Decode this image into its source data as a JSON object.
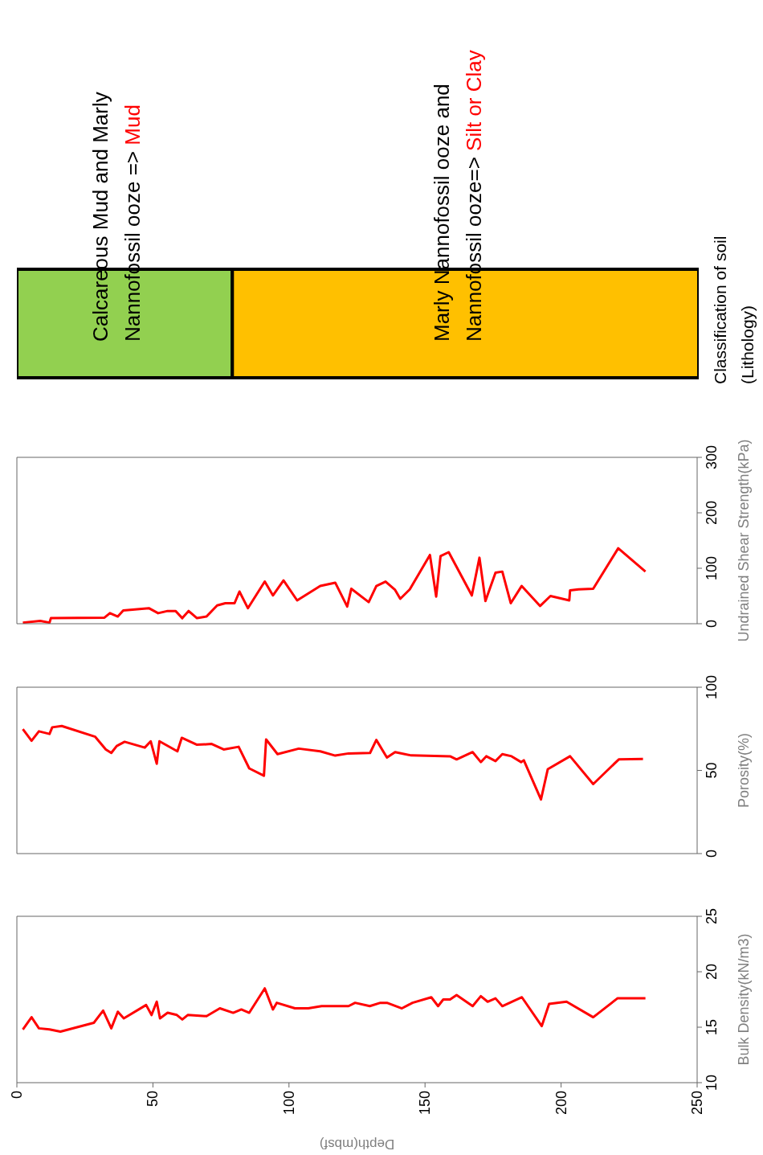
{
  "chart_data": [
    {
      "type": "bar",
      "orientation": "horizontal",
      "stacked": true,
      "categories": [
        null
      ],
      "xlim": [
        0,
        250
      ],
      "tick_labels": false,
      "ylabel": "Classification of soil (Lithology)",
      "annotations": [
        "Mud",
        "Silt or Clay"
      ],
      "series": [
        {
          "name": "Calcareous Mud and Marly Nannofossil ooze =>",
          "color": "#92d050",
          "values": [
            79
          ]
        },
        {
          "name": "Marly Nannofossil ooze and Nannofossil ooze=>",
          "color": "#ffc000",
          "values": [
            171
          ]
        }
      ]
    },
    {
      "type": "line",
      "ylabel": "Undrained Shear Strength(kPa)",
      "xlim": [
        0,
        250
      ],
      "ylim": [
        0,
        300
      ],
      "yticks": [
        0,
        100,
        200,
        300
      ],
      "tick_labels": "y",
      "x": [
        2.2,
        8.6,
        12,
        12.5,
        32.2,
        34.2,
        37.1,
        39.1,
        48.5,
        51.9,
        55.4,
        58.3,
        60.8,
        63.1,
        66.2,
        69.7,
        73.6,
        76.6,
        80,
        81.8,
        84.9,
        91.1,
        94.1,
        98,
        103,
        111.5,
        117,
        121.4,
        122.9,
        129.3,
        132.1,
        135.5,
        139,
        140.9,
        144.4,
        151.8,
        154.1,
        155.7,
        158.7,
        167.2,
        170,
        172.2,
        175.9,
        178.4,
        181.5,
        185.5,
        192.3,
        196.1,
        203,
        203.3,
        206.4,
        211.8,
        221,
        231
      ],
      "series": [
        {
          "color": "#ff0000",
          "values": [
            2,
            5,
            2,
            10,
            11,
            19,
            13,
            24,
            28,
            19,
            23,
            23,
            10,
            23,
            10,
            13,
            33,
            37,
            37,
            58,
            28,
            76,
            51,
            78,
            42,
            68,
            74,
            31,
            63,
            39,
            68,
            76,
            61,
            45,
            62,
            124,
            49,
            122,
            129,
            51,
            119,
            41,
            92,
            94,
            37,
            68,
            32,
            50,
            42,
            60,
            62,
            63,
            136,
            94
          ]
        }
      ]
    },
    {
      "type": "line",
      "ylabel": "Porosity(%)",
      "xlim": [
        0,
        250
      ],
      "ylim": [
        0,
        100
      ],
      "yticks": [
        0,
        50,
        100
      ],
      "tick_labels": "y",
      "x": [
        2.2,
        5.4,
        8.1,
        12,
        13,
        16.5,
        28.8,
        32.7,
        34.7,
        36.7,
        39.6,
        47,
        49.2,
        51.4,
        52.4,
        59,
        60.6,
        66.2,
        71.6,
        76,
        81.5,
        85.4,
        90.8,
        91.6,
        95.8,
        103.6,
        111.5,
        117,
        121.9,
        129.8,
        132.1,
        136,
        139,
        144.9,
        159.2,
        161.6,
        167.5,
        170.5,
        172.5,
        175.9,
        178.4,
        181.8,
        185.3,
        186.3,
        192.6,
        195.1,
        203.3,
        211.8,
        221.2,
        230.1
      ],
      "series": [
        {
          "color": "#ff0000",
          "values": [
            74.8,
            67.8,
            73.5,
            71.9,
            75.9,
            76.7,
            70.2,
            62.6,
            60.5,
            64.7,
            67.2,
            63.7,
            67.5,
            54,
            67.5,
            61.5,
            69.6,
            65.4,
            65.9,
            62.6,
            64.2,
            51.2,
            46.8,
            68.6,
            59.8,
            63.1,
            61.5,
            58.9,
            60.2,
            60.5,
            68.3,
            57.7,
            61,
            59,
            58.5,
            56.6,
            61,
            55,
            58.5,
            55.6,
            59.8,
            58.5,
            55,
            56.1,
            32.5,
            50.7,
            58.5,
            41.8,
            56.6,
            56.9
          ]
        }
      ]
    },
    {
      "type": "line",
      "ylabel": "Bulk Density(kN/m3)",
      "xlabel": "Depth(mbsf)",
      "xlim": [
        0,
        250
      ],
      "xticks": [
        0,
        50,
        100,
        150,
        200,
        250
      ],
      "ylim": [
        10,
        25
      ],
      "yticks": [
        10,
        15,
        20,
        25
      ],
      "x": [
        2.2,
        5.4,
        8.1,
        12,
        16,
        28.3,
        31.7,
        34.7,
        37.1,
        39.3,
        47.5,
        49.5,
        51.4,
        52.6,
        55.4,
        58.8,
        60.8,
        62.8,
        69.7,
        74.6,
        79.5,
        82.5,
        85.4,
        91.1,
        94.1,
        95.5,
        102.2,
        107.1,
        112,
        121.9,
        124.3,
        129.7,
        133.6,
        136,
        141.5,
        145.4,
        152.3,
        154.8,
        156.7,
        159.2,
        161.6,
        167.5,
        170.5,
        173,
        175.9,
        178.4,
        185.6,
        192.9,
        195.6,
        202,
        211.8,
        220.7,
        231
      ],
      "series": [
        {
          "color": "#ff0000",
          "values": [
            14.8,
            15.9,
            14.9,
            14.8,
            14.6,
            15.4,
            16.5,
            14.9,
            16.4,
            15.8,
            17,
            16.1,
            17.3,
            15.8,
            16.3,
            16.1,
            15.7,
            16.1,
            16,
            16.7,
            16.3,
            16.6,
            16.3,
            18.5,
            16.6,
            17.2,
            16.7,
            16.7,
            16.9,
            16.9,
            17.2,
            16.9,
            17.2,
            17.2,
            16.7,
            17.2,
            17.7,
            16.9,
            17.5,
            17.5,
            17.9,
            16.9,
            17.8,
            17.3,
            17.6,
            16.9,
            17.7,
            15.1,
            17.1,
            17.3,
            15.9,
            17.6,
            17.6
          ]
        }
      ]
    }
  ]
}
